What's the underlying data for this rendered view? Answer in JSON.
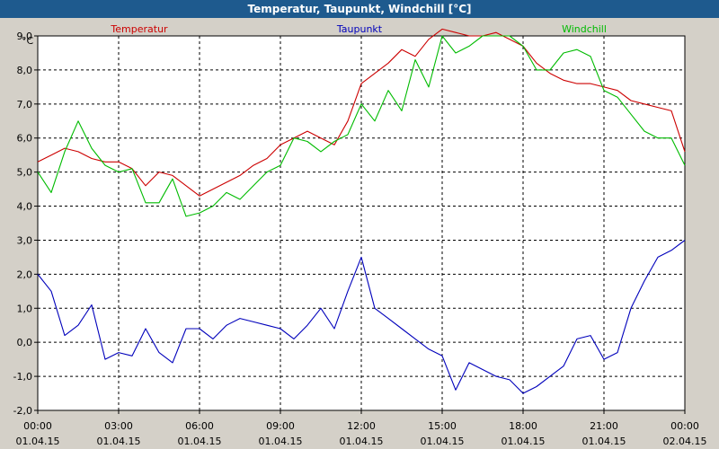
{
  "window": {
    "title": "Temperatur, Taupunkt, Windchill [°C]"
  },
  "chart_data": {
    "type": "line",
    "title": "Temperatur, Taupunkt, Windchill [°C]",
    "ylabel": "°C",
    "ylim": [
      -2.0,
      9.0
    ],
    "yticks": [
      "-2,0",
      "-1,0",
      "0,0",
      "1,0",
      "2,0",
      "3,0",
      "4,0",
      "5,0",
      "6,0",
      "7,0",
      "8,0",
      "9,0"
    ],
    "xlim": [
      0,
      24
    ],
    "xticks": [
      {
        "time": "00:00",
        "date": "01.04.15"
      },
      {
        "time": "03:00",
        "date": "01.04.15"
      },
      {
        "time": "06:00",
        "date": "01.04.15"
      },
      {
        "time": "09:00",
        "date": "01.04.15"
      },
      {
        "time": "12:00",
        "date": "01.04.15"
      },
      {
        "time": "15:00",
        "date": "01.04.15"
      },
      {
        "time": "18:00",
        "date": "01.04.15"
      },
      {
        "time": "21:00",
        "date": "01.04.15"
      },
      {
        "time": "00:00",
        "date": "02.04.15"
      }
    ],
    "grid": true,
    "legend_position": "top",
    "colors": {
      "temperatur": "#cc0000",
      "taupunkt": "#0000bb",
      "windchill": "#00bb00"
    },
    "series": [
      {
        "name": "Temperatur",
        "color": "#cc0000",
        "x": [
          0,
          0.5,
          1,
          1.5,
          2,
          2.5,
          3,
          3.5,
          4,
          4.5,
          5,
          5.5,
          6,
          6.5,
          7,
          7.5,
          8,
          8.5,
          9,
          9.5,
          10,
          10.5,
          11,
          11.5,
          12,
          12.5,
          13,
          13.5,
          14,
          14.5,
          15,
          15.5,
          16,
          16.5,
          17,
          17.5,
          18,
          18.5,
          19,
          19.5,
          20,
          20.5,
          21,
          21.5,
          22,
          22.5,
          23,
          23.5,
          24
        ],
        "values": [
          5.3,
          5.5,
          5.7,
          5.6,
          5.4,
          5.3,
          5.3,
          5.1,
          4.6,
          5.0,
          4.9,
          4.6,
          4.3,
          4.5,
          4.7,
          4.9,
          5.2,
          5.4,
          5.8,
          6.0,
          6.2,
          6.0,
          5.8,
          6.5,
          7.6,
          7.9,
          8.2,
          8.6,
          8.4,
          8.9,
          9.2,
          9.1,
          9.0,
          9.0,
          9.1,
          8.9,
          8.7,
          8.2,
          7.9,
          7.7,
          7.6,
          7.6,
          7.5,
          7.4,
          7.1,
          7.0,
          6.9,
          6.8,
          5.6
        ]
      },
      {
        "name": "Taupunkt",
        "color": "#0000bb",
        "x": [
          0,
          0.5,
          1,
          1.5,
          2,
          2.5,
          3,
          3.5,
          4,
          4.5,
          5,
          5.5,
          6,
          6.5,
          7,
          7.5,
          8,
          8.5,
          9,
          9.5,
          10,
          10.5,
          11,
          11.5,
          12,
          12.5,
          13,
          13.5,
          14,
          14.5,
          15,
          15.5,
          16,
          16.5,
          17,
          17.5,
          18,
          18.5,
          19,
          19.5,
          20,
          20.5,
          21,
          21.5,
          22,
          22.5,
          23,
          23.5,
          24
        ],
        "values": [
          2.0,
          1.5,
          0.2,
          0.5,
          1.1,
          -0.5,
          -0.3,
          -0.4,
          0.4,
          -0.3,
          -0.6,
          0.4,
          0.4,
          0.1,
          0.5,
          0.7,
          0.6,
          0.5,
          0.4,
          0.1,
          0.5,
          1.0,
          0.4,
          1.5,
          2.5,
          1.0,
          0.7,
          0.4,
          0.1,
          -0.2,
          -0.4,
          -1.4,
          -0.6,
          -0.8,
          -1.0,
          -1.1,
          -1.5,
          -1.3,
          -1.0,
          -0.7,
          0.1,
          0.2,
          -0.5,
          -0.3,
          1.0,
          1.8,
          2.5,
          2.7,
          3.0
        ]
      },
      {
        "name": "Windchill",
        "color": "#00bb00",
        "x": [
          0,
          0.5,
          1,
          1.5,
          2,
          2.5,
          3,
          3.5,
          4,
          4.5,
          5,
          5.5,
          6,
          6.5,
          7,
          7.5,
          8,
          8.5,
          9,
          9.5,
          10,
          10.5,
          11,
          11.5,
          12,
          12.5,
          13,
          13.5,
          14,
          14.5,
          15,
          15.5,
          16,
          16.5,
          17,
          17.5,
          18,
          18.5,
          19,
          19.5,
          20,
          20.5,
          21,
          21.5,
          22,
          22.5,
          23,
          23.5,
          24
        ],
        "values": [
          5.0,
          4.4,
          5.6,
          6.5,
          5.7,
          5.2,
          5.0,
          5.1,
          4.1,
          4.1,
          4.8,
          3.7,
          3.8,
          4.0,
          4.4,
          4.2,
          4.6,
          5.0,
          5.2,
          6.0,
          5.9,
          5.6,
          5.9,
          6.1,
          7.0,
          6.5,
          7.4,
          6.8,
          8.3,
          7.5,
          9.0,
          8.5,
          8.7,
          9.0,
          9.0,
          9.0,
          8.7,
          8.0,
          8.0,
          8.5,
          8.6,
          8.4,
          7.4,
          7.2,
          6.7,
          6.2,
          6.0,
          6.0,
          5.2
        ]
      }
    ]
  }
}
